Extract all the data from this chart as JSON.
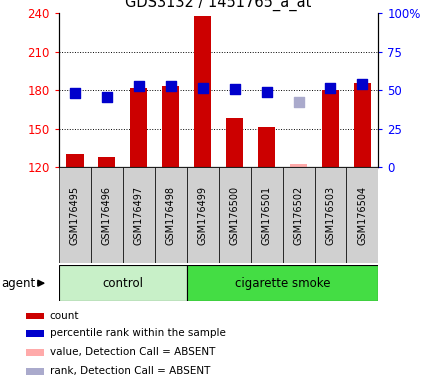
{
  "title": "GDS3132 / 1451765_a_at",
  "samples": [
    "GSM176495",
    "GSM176496",
    "GSM176497",
    "GSM176498",
    "GSM176499",
    "GSM176500",
    "GSM176501",
    "GSM176502",
    "GSM176503",
    "GSM176504"
  ],
  "count_values": [
    130,
    128,
    182,
    183,
    238,
    158,
    151,
    null,
    180,
    186
  ],
  "count_absent": [
    null,
    null,
    null,
    null,
    null,
    null,
    null,
    122,
    null,
    null
  ],
  "percentile_values": [
    178,
    175,
    183,
    183,
    182,
    181,
    179,
    null,
    182,
    185
  ],
  "percentile_absent": [
    null,
    null,
    null,
    null,
    null,
    null,
    null,
    171,
    null,
    null
  ],
  "ylim_left": [
    120,
    240
  ],
  "ylim_right": [
    0,
    100
  ],
  "yticks_left": [
    120,
    150,
    180,
    210,
    240
  ],
  "yticks_right": [
    0,
    25,
    50,
    75,
    100
  ],
  "bar_color_present": "#cc0000",
  "bar_color_absent": "#ffaaaa",
  "dot_color_present": "#0000cc",
  "dot_color_absent": "#aaaacc",
  "dot_size": 45,
  "group_control_color": "#c8f0c8",
  "group_smoke_color": "#44dd44",
  "legend_items": [
    {
      "label": "count",
      "color": "#cc0000"
    },
    {
      "label": "percentile rank within the sample",
      "color": "#0000cc"
    },
    {
      "label": "value, Detection Call = ABSENT",
      "color": "#ffaaaa"
    },
    {
      "label": "rank, Detection Call = ABSENT",
      "color": "#aaaacc"
    }
  ],
  "plot_bg_color": "#ffffff",
  "label_box_color": "#d0d0d0"
}
